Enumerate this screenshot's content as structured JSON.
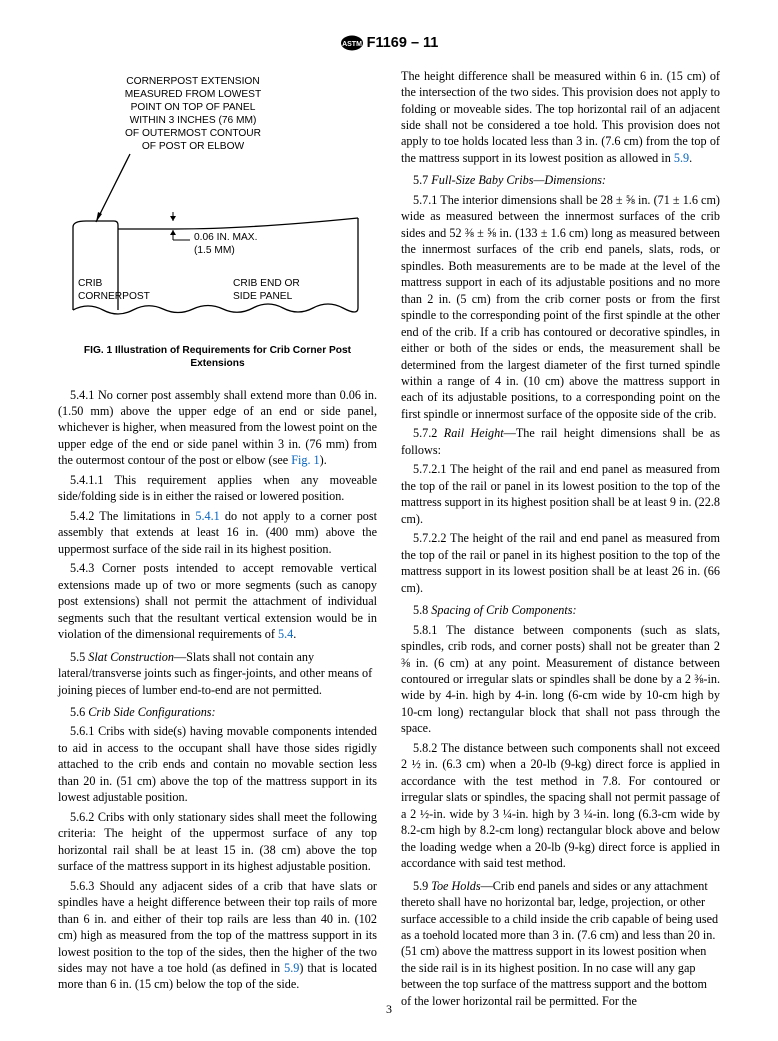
{
  "header": {
    "designation": "F1169 – 11"
  },
  "figure": {
    "annot_top": "CORNERPOST EXTENSION\nMEASURED FROM LOWEST\nPOINT ON TOP OF PANEL\nWITHIN 3 INCHES (76 MM)\nOF OUTERMOST CONTOUR\nOF POST OR ELBOW",
    "annot_gap": "0.06 IN. MAX.\n(1.5 MM)",
    "label_left": "CRIB\nCORNERPOST",
    "label_right": "CRIB END OR\nSIDE PANEL",
    "caption": "FIG. 1  Illustration of Requirements for Crib Corner Post Extensions",
    "style": {
      "stroke": "#000000",
      "stroke_width": 1.3,
      "font_family": "Arial, Helvetica, sans-serif",
      "font_size": 10.2,
      "annot_font_weight": "normal"
    }
  },
  "left": {
    "p541_body": "No corner post assembly shall extend more than 0.06 in. (1.50 mm) above the upper edge of an end or side panel, whichever is higher, when measured from the lowest point on the upper edge of the end or side panel within 3 in. (76 mm) from the outermost contour of the post or elbow (see ",
    "p541_link": "Fig. 1",
    "p541_tail": ").",
    "p5411": "5.4.1.1 This requirement applies when any moveable side/folding side is in either the raised or lowered position.",
    "p542_a": "5.4.2 The limitations in ",
    "p542_link": "5.4.1",
    "p542_b": " do not apply to a corner post assembly that extends at least 16 in. (400 mm) above the uppermost surface of the side rail in its highest position.",
    "p543_a": "5.4.3 Corner posts intended to accept removable vertical extensions made up of two or more segments (such as canopy post extensions) shall not permit the attachment of individual segments such that the resultant vertical extension would be in violation of the dimensional requirements of ",
    "p543_link": "5.4",
    "p543_b": ".",
    "p55_head": "5.5 ",
    "p55_title": "Slat Construction",
    "p55_body": "—Slats shall not contain any lateral/transverse joints such as finger-joints, and other means of joining pieces of lumber end-to-end are not permitted.",
    "p56_head": "5.6 ",
    "p56_title": "Crib Side Configurations:",
    "p561": "5.6.1 Cribs with side(s) having movable components intended to aid in access to the occupant shall have those sides rigidly attached to the crib ends and contain no movable section less than 20 in. (51 cm) above the top of the mattress support in its lowest adjustable position.",
    "p562": "5.6.2 Cribs with only stationary sides shall meet the following criteria: The height of the uppermost surface of any top horizontal rail shall be at least 15 in. (38 cm) above the top surface of the mattress support in its highest adjustable position.",
    "p563_a": "5.6.3 Should any adjacent sides of a crib that have slats or spindles have a height difference between their top rails of more than 6 in. and either of their top rails are less than 40 in. (102 cm) high as measured from the top of the mattress support in its lowest position to the top of the sides, then the higher of the two sides may not have a toe hold (as defined in ",
    "p563_link": "5.9",
    "p563_b": ") that is located more than 6 in. (15 cm) below the top of the side."
  },
  "right": {
    "cont_a": "The height difference shall be measured within 6 in. (15 cm) of the intersection of the two sides. This provision does not apply to folding or moveable sides. The top horizontal rail of an adjacent side shall not be considered a toe hold. This provision does not apply to toe holds located less than 3 in. (7.6 cm) from the top of the mattress support in its lowest position as allowed in ",
    "cont_link": "5.9",
    "cont_b": ".",
    "p57_head": "5.7 ",
    "p57_title": "Full-Size Baby Cribs—Dimensions:",
    "p571": "5.7.1 The interior dimensions shall be 28 ± ⅝ in. (71 ± 1.6 cm) wide as measured between the innermost surfaces of the crib sides and 52 ⅜ ± ⅝ in. (133 ± 1.6 cm) long as measured between the innermost surfaces of the crib end panels, slats, rods, or spindles. Both measurements are to be made at the level of the mattress support in each of its adjustable positions and no more than 2 in. (5 cm) from the crib corner posts or from the first spindle to the corresponding point of the first spindle at the other end of the crib. If a crib has contoured or decorative spindles, in either or both of the sides or ends, the measurement shall be determined from the largest diameter of the first turned spindle within a range of 4 in. (10 cm) above the mattress support in each of its adjustable positions, to a corresponding point on the first spindle or innermost surface of the opposite side of the crib.",
    "p572_head": "5.7.2 ",
    "p572_title": "Rail Height",
    "p572_body": "—The rail height dimensions shall be as follows:",
    "p5721": "5.7.2.1 The height of the rail and end panel as measured from the top of the rail or panel in its lowest position to the top of the mattress support in its highest position shall be at least 9 in. (22.8 cm).",
    "p5722": "5.7.2.2 The height of the rail and end panel as measured from the top of the rail or panel in its highest position to the top of the mattress support in its lowest position shall be at least 26 in. (66 cm).",
    "p58_head": "5.8 ",
    "p58_title": "Spacing of Crib Components:",
    "p581": "5.8.1 The distance between components (such as slats, spindles, crib rods, and corner posts) shall not be greater than 2 ⅜ in. (6 cm) at any point. Measurement of distance between contoured or irregular slats or spindles shall be done by a 2 ⅜-in. wide by 4-in. high by 4-in. long (6-cm wide by 10-cm high by 10-cm long) rectangular block that shall not pass through the space.",
    "p582": "5.8.2 The distance between such components shall not exceed 2 ½ in. (6.3 cm) when a 20-lb (9-kg) direct force is applied in accordance with the test method in 7.8. For contoured or irregular slats or spindles, the spacing shall not permit passage of a 2 ½-in. wide by 3 ¼-in. high by 3 ¼-in. long (6.3-cm wide by 8.2-cm high by 8.2-cm long) rectangular block above and below the loading wedge when a 20-lb (9-kg) direct force is applied in accordance with said test method.",
    "p59_head": "5.9 ",
    "p59_title": "Toe Holds",
    "p59_body": "—Crib end panels and sides or any attachment thereto shall have no horizontal bar, ledge, projection, or other surface accessible to a child inside the crib capable of being used as a toehold located more than 3 in. (7.6 cm) and less than 20 in. (51 cm) above the mattress support in its lowest position when the side rail is in its highest position. In no case will any gap between the top surface of the mattress support and the bottom of the lower horizontal rail be permitted. For the"
  },
  "pagenum": "3",
  "link_color": "#0563c1"
}
